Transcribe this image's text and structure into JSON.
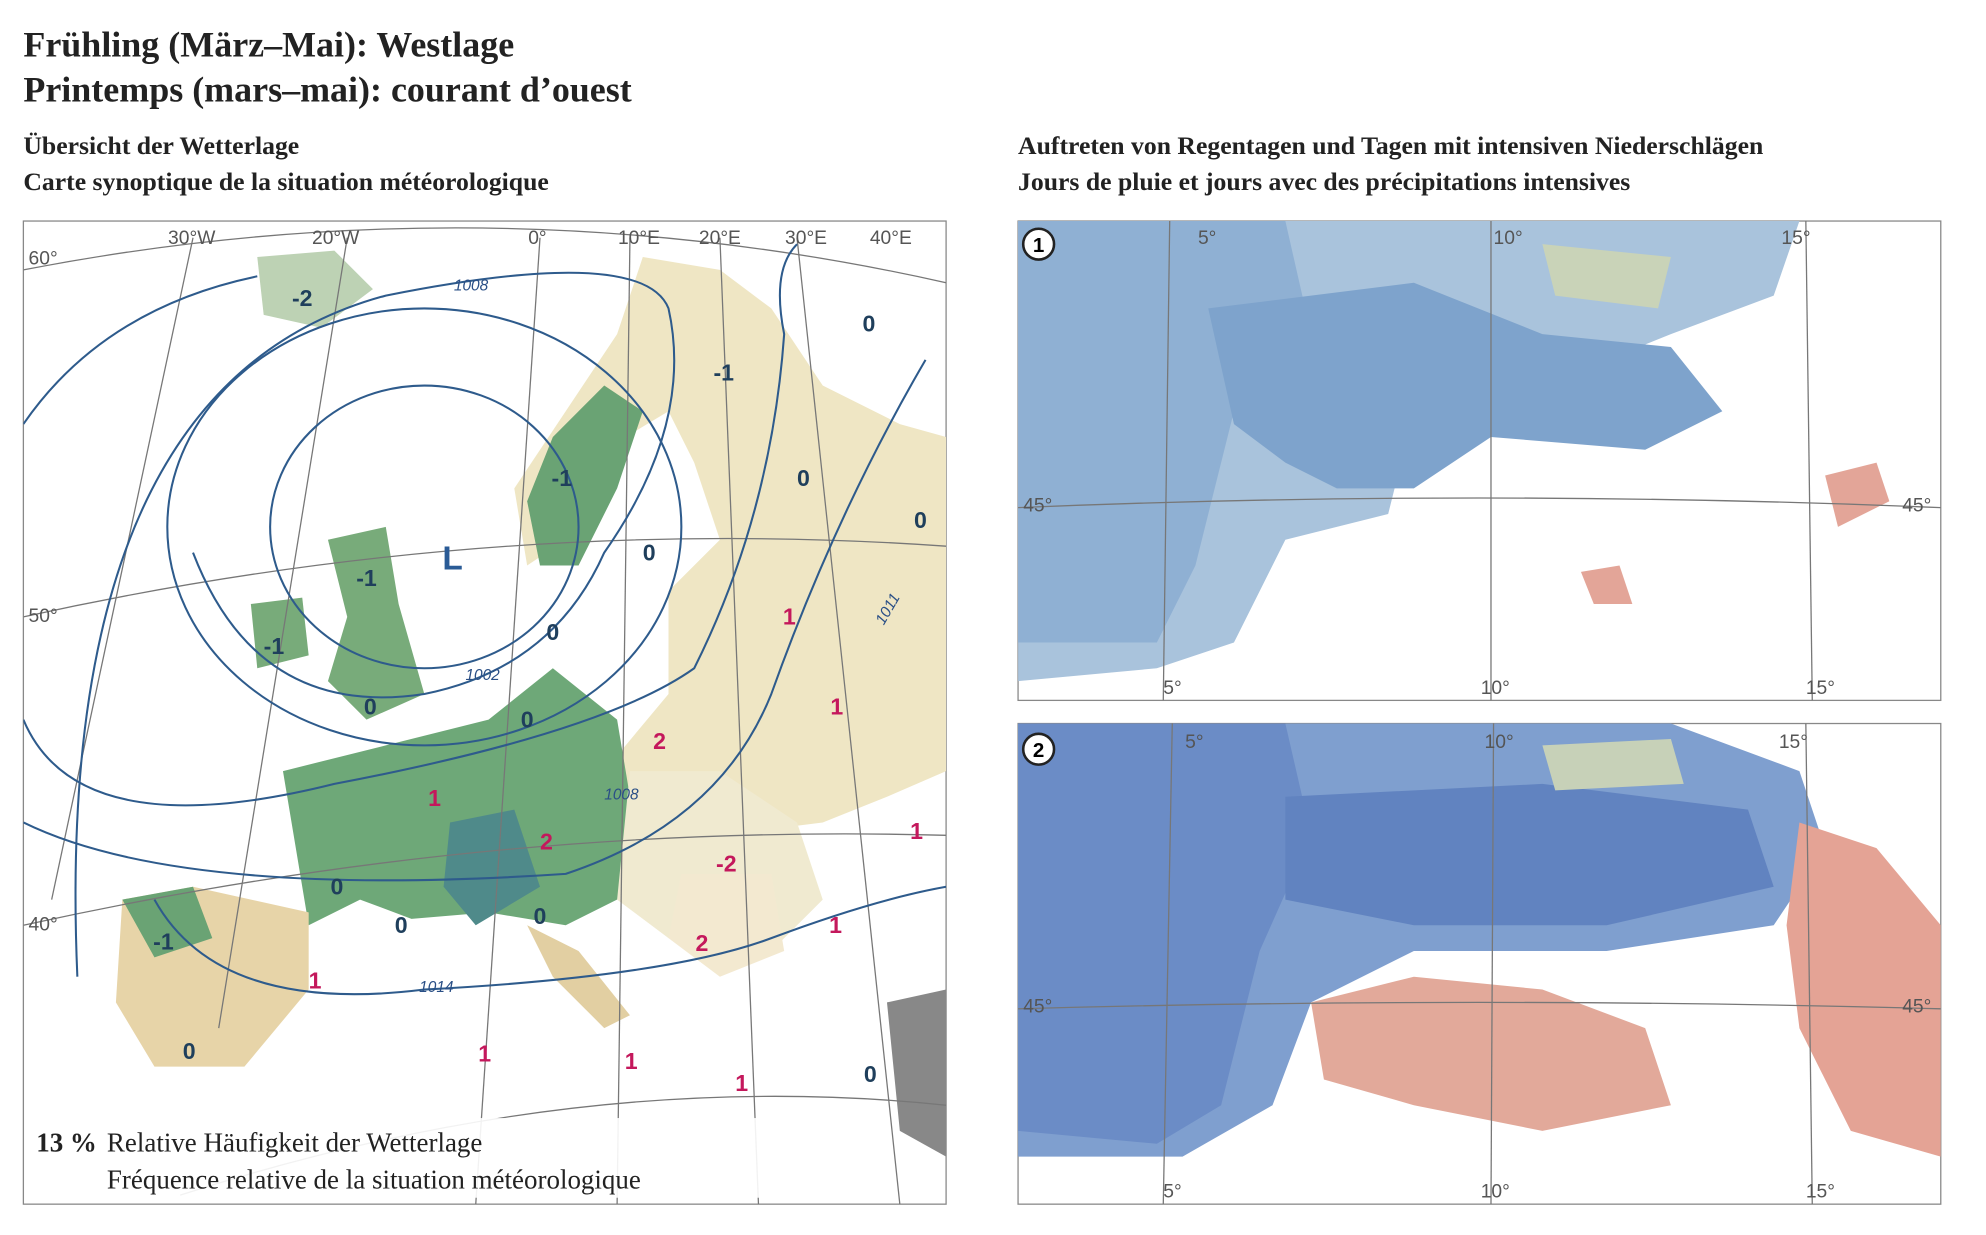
{
  "header": {
    "title_de": "Frühling (März–Mai): Westlage",
    "title_fr": "Printemps (mars–mai): courant d’ouest"
  },
  "left_panel": {
    "title_de": "Übersicht der Wetterlage",
    "title_fr": "Carte synoptique de la situation météorologique",
    "longitude_labels": [
      "30°W",
      "20°W",
      "0°",
      "10°E",
      "20°E",
      "30°E",
      "40°E"
    ],
    "latitude_labels": [
      "60°",
      "50°",
      "40°"
    ],
    "isobar_labels": [
      "1008",
      "1002",
      "1008",
      "1011",
      "1014"
    ],
    "pressure_center": "L",
    "anomaly_labels": [
      "-2",
      "0",
      "-1",
      "0",
      "-1",
      "0",
      "0",
      "-1",
      "0",
      "1",
      "-1",
      "0",
      "0",
      "2",
      "1",
      "1",
      "2",
      "-2",
      "1",
      "0",
      "0",
      "0",
      "2",
      "1",
      "-1",
      "1",
      "0",
      "1",
      "1",
      "1",
      "0"
    ],
    "frequency": "13 %",
    "frequency_de": "Relative Häufigkeit der Wetterlage",
    "frequency_fr": "Fréquence relative de la situation météorologique"
  },
  "right_panel": {
    "title_de": "Auftreten von Regentagen und Tagen mit intensiven Niederschlägen",
    "title_fr": "Jours de pluie et jours avec des précipitations intensives",
    "maps": [
      {
        "number": "1",
        "top_labels": [
          "5°",
          "10°",
          "15°"
        ],
        "bottom_labels": [
          "5°",
          "10°",
          "15°"
        ],
        "lat_labels": [
          "45°",
          "45°"
        ]
      },
      {
        "number": "2",
        "top_labels": [
          "5°",
          "10°",
          "15°"
        ],
        "bottom_labels": [
          "5°",
          "10°",
          "15°"
        ],
        "lat_labels": [
          "45°",
          "45°"
        ]
      }
    ]
  }
}
